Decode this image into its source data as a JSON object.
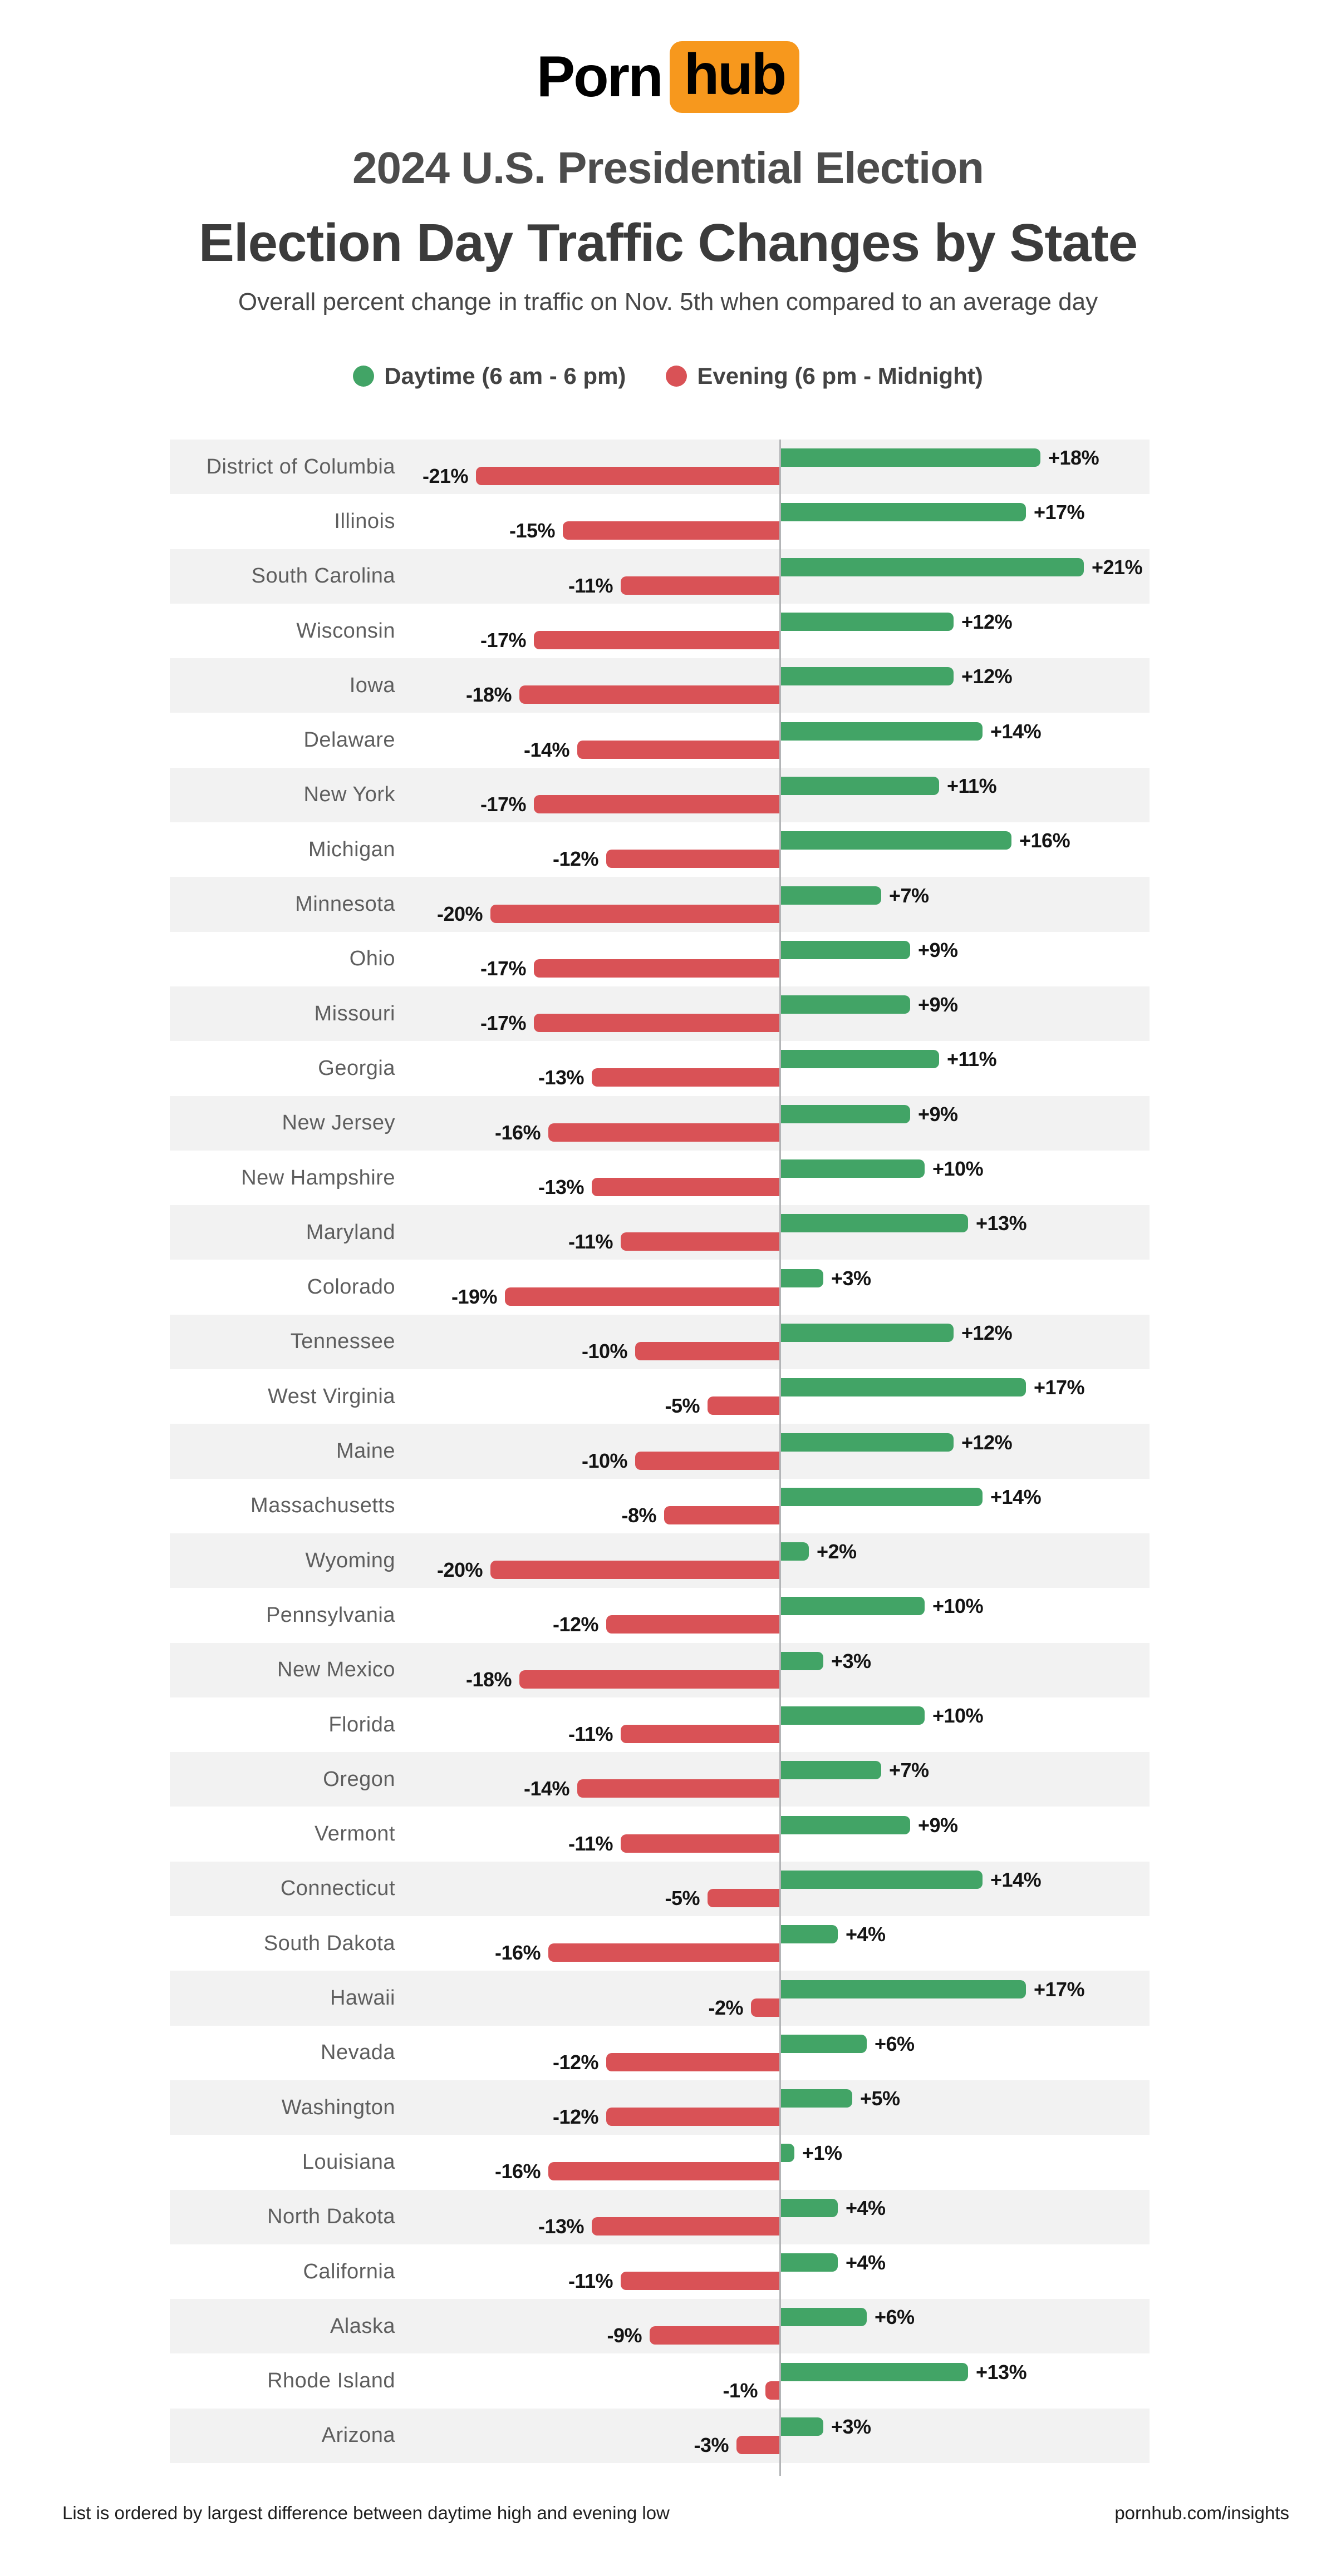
{
  "logo": {
    "part1": "Porn",
    "part2": "hub",
    "box_color": "#f7981d"
  },
  "header": {
    "title_line1": "2024 U.S. Presidential Election",
    "title_line2": "Election Day Traffic Changes by State",
    "subtitle": "Overall percent change in traffic on Nov. 5th when compared to an average day"
  },
  "legend": [
    {
      "label": "Daytime (6 am - 6 pm)",
      "color": "#42a466"
    },
    {
      "label": "Evening (6 pm - Midnight)",
      "color": "#d95256"
    }
  ],
  "colors": {
    "daytime_green": "#42a466",
    "evening_red": "#d95256",
    "row_stripe": "#f2f2f2",
    "axis_line": "#b3b5b7",
    "logo_orange": "#f7981d"
  },
  "footer": {
    "note": "List is ordered by largest difference between daytime high and evening low",
    "source": "pornhub.com/insights"
  },
  "chart_data": {
    "type": "bar",
    "orientation": "horizontal-diverging",
    "title": "Election Day Traffic Changes by State",
    "subtitle": "Overall percent change in traffic on Nov. 5th when compared to an average day",
    "value_suffix": "%",
    "xlim": [
      -22,
      22
    ],
    "zero_line": true,
    "grid": false,
    "legend_position": "top",
    "categories": [
      "District of Columbia",
      "Illinois",
      "South Carolina",
      "Wisconsin",
      "Iowa",
      "Delaware",
      "New York",
      "Michigan",
      "Minnesota",
      "Ohio",
      "Missouri",
      "Georgia",
      "New Jersey",
      "New Hampshire",
      "Maryland",
      "Colorado",
      "Tennessee",
      "West Virginia",
      "Maine",
      "Massachusetts",
      "Wyoming",
      "Pennsylvania",
      "New Mexico",
      "Florida",
      "Oregon",
      "Vermont",
      "Connecticut",
      "South Dakota",
      "Hawaii",
      "Nevada",
      "Washington",
      "Louisiana",
      "North Dakota",
      "California",
      "Alaska",
      "Rhode Island",
      "Arizona"
    ],
    "series": [
      {
        "name": "Daytime (6 am - 6 pm)",
        "color": "#42a466",
        "values": [
          18,
          17,
          21,
          12,
          12,
          14,
          11,
          16,
          7,
          9,
          9,
          11,
          9,
          10,
          13,
          3,
          12,
          17,
          12,
          14,
          2,
          10,
          3,
          10,
          7,
          9,
          14,
          4,
          17,
          6,
          5,
          1,
          4,
          4,
          6,
          13,
          3
        ]
      },
      {
        "name": "Evening (6 pm - Midnight)",
        "color": "#d95256",
        "values": [
          -21,
          -15,
          -11,
          -17,
          -18,
          -14,
          -17,
          -12,
          -20,
          -17,
          -17,
          -13,
          -16,
          -13,
          -11,
          -19,
          -10,
          -5,
          -10,
          -8,
          -20,
          -12,
          -18,
          -11,
          -14,
          -11,
          -5,
          -16,
          -2,
          -12,
          -12,
          -16,
          -13,
          -11,
          -9,
          -1,
          -3
        ]
      }
    ]
  }
}
